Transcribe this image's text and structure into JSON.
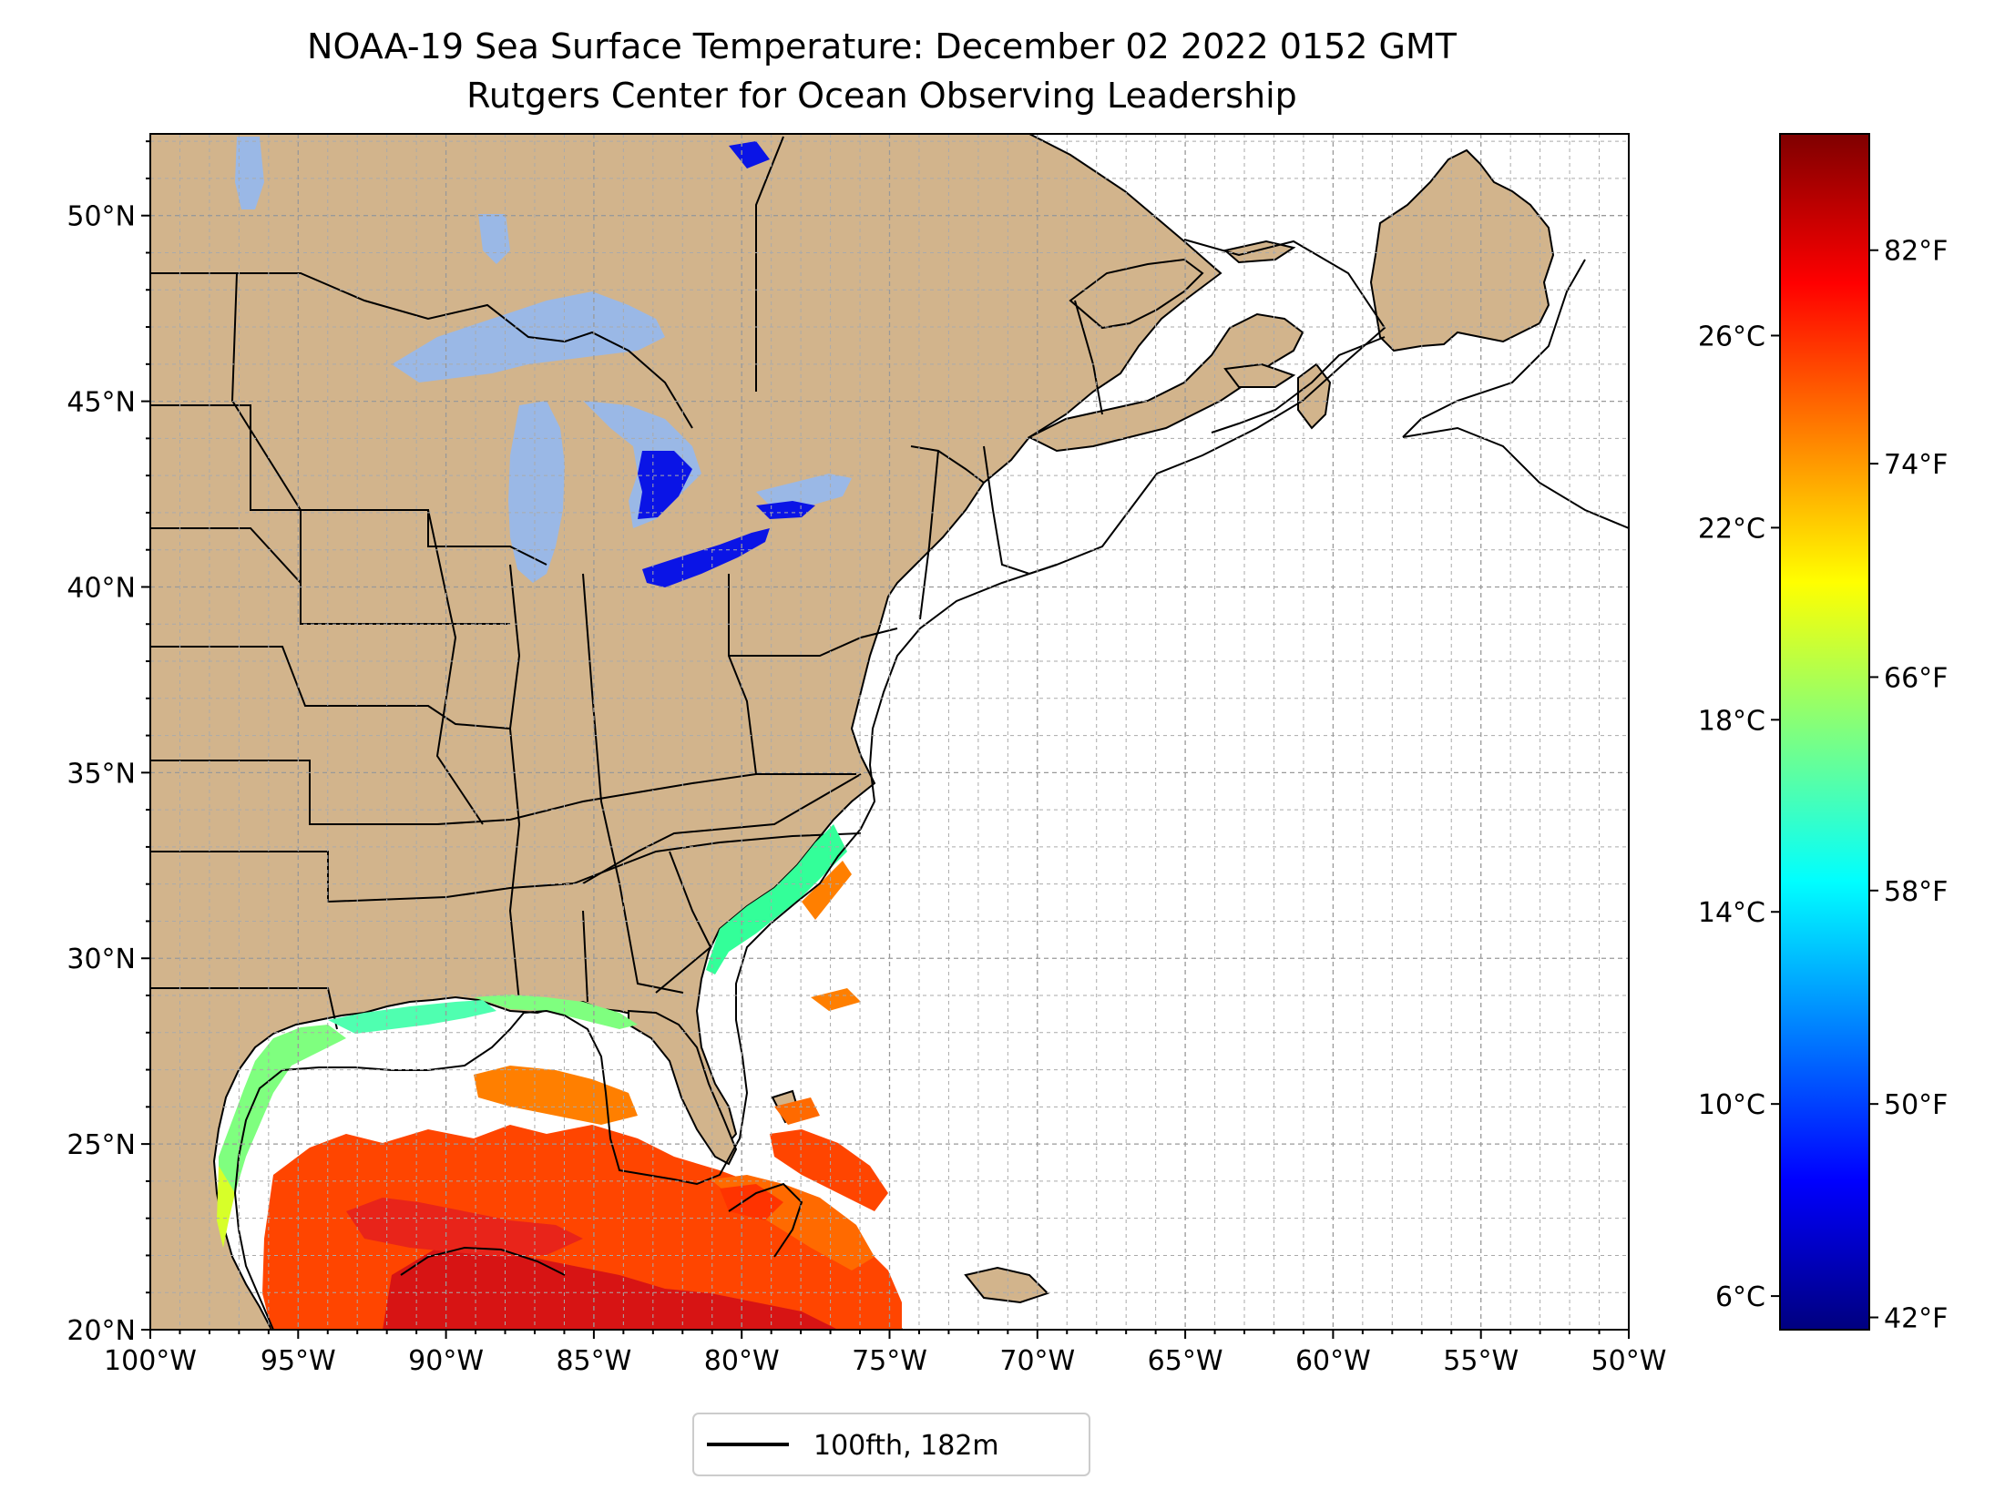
{
  "title": {
    "line1": "NOAA-19 Sea Surface Temperature: December 02 2022 0152 GMT",
    "line2": "Rutgers Center for Ocean Observing Leadership"
  },
  "map": {
    "extent": {
      "lon": [
        -100,
        -50
      ],
      "lat": [
        20,
        52.2
      ]
    },
    "x_ticks": [
      {
        "lon": -100,
        "label": "100°W"
      },
      {
        "lon": -95,
        "label": "95°W"
      },
      {
        "lon": -90,
        "label": "90°W"
      },
      {
        "lon": -85,
        "label": "85°W"
      },
      {
        "lon": -80,
        "label": "80°W"
      },
      {
        "lon": -75,
        "label": "75°W"
      },
      {
        "lon": -70,
        "label": "70°W"
      },
      {
        "lon": -65,
        "label": "65°W"
      },
      {
        "lon": -60,
        "label": "60°W"
      },
      {
        "lon": -55,
        "label": "55°W"
      },
      {
        "lon": -50,
        "label": "50°W"
      }
    ],
    "y_ticks": [
      {
        "lat": 20,
        "label": "20°N"
      },
      {
        "lat": 25,
        "label": "25°N"
      },
      {
        "lat": 30,
        "label": "30°N"
      },
      {
        "lat": 35,
        "label": "35°N"
      },
      {
        "lat": 40,
        "label": "40°N"
      },
      {
        "lat": 45,
        "label": "45°N"
      },
      {
        "lat": 50,
        "label": "50°N"
      }
    ],
    "grid": true,
    "colors": {
      "land": "#d2b48c",
      "lakes": "#9ab8e6",
      "ocean": "#ffffff",
      "cold_lake": "#0a14e6",
      "isobath": "#000000"
    }
  },
  "colorbar": {
    "colormap": "jet",
    "c_ticks": [
      {
        "value": 6,
        "label": "6°C"
      },
      {
        "value": 10,
        "label": "10°C"
      },
      {
        "value": 14,
        "label": "14°C"
      },
      {
        "value": 18,
        "label": "18°C"
      },
      {
        "value": 22,
        "label": "22°C"
      },
      {
        "value": 26,
        "label": "26°C"
      }
    ],
    "f_ticks": [
      {
        "value": 42,
        "label": "42°F"
      },
      {
        "value": 50,
        "label": "50°F"
      },
      {
        "value": 58,
        "label": "58°F"
      },
      {
        "value": 66,
        "label": "66°F"
      },
      {
        "value": 74,
        "label": "74°F"
      },
      {
        "value": 82,
        "label": "82°F"
      }
    ],
    "range_c": [
      5.3,
      30.2
    ],
    "stops": [
      "#00007f",
      "#0000ff",
      "#007fff",
      "#00ffff",
      "#7fff7f",
      "#ffff00",
      "#ff7f00",
      "#ff0000",
      "#7f0000"
    ]
  },
  "legend": {
    "line_label": "100fth, 182m",
    "line_color": "#000000",
    "placement": "bottom-center"
  }
}
